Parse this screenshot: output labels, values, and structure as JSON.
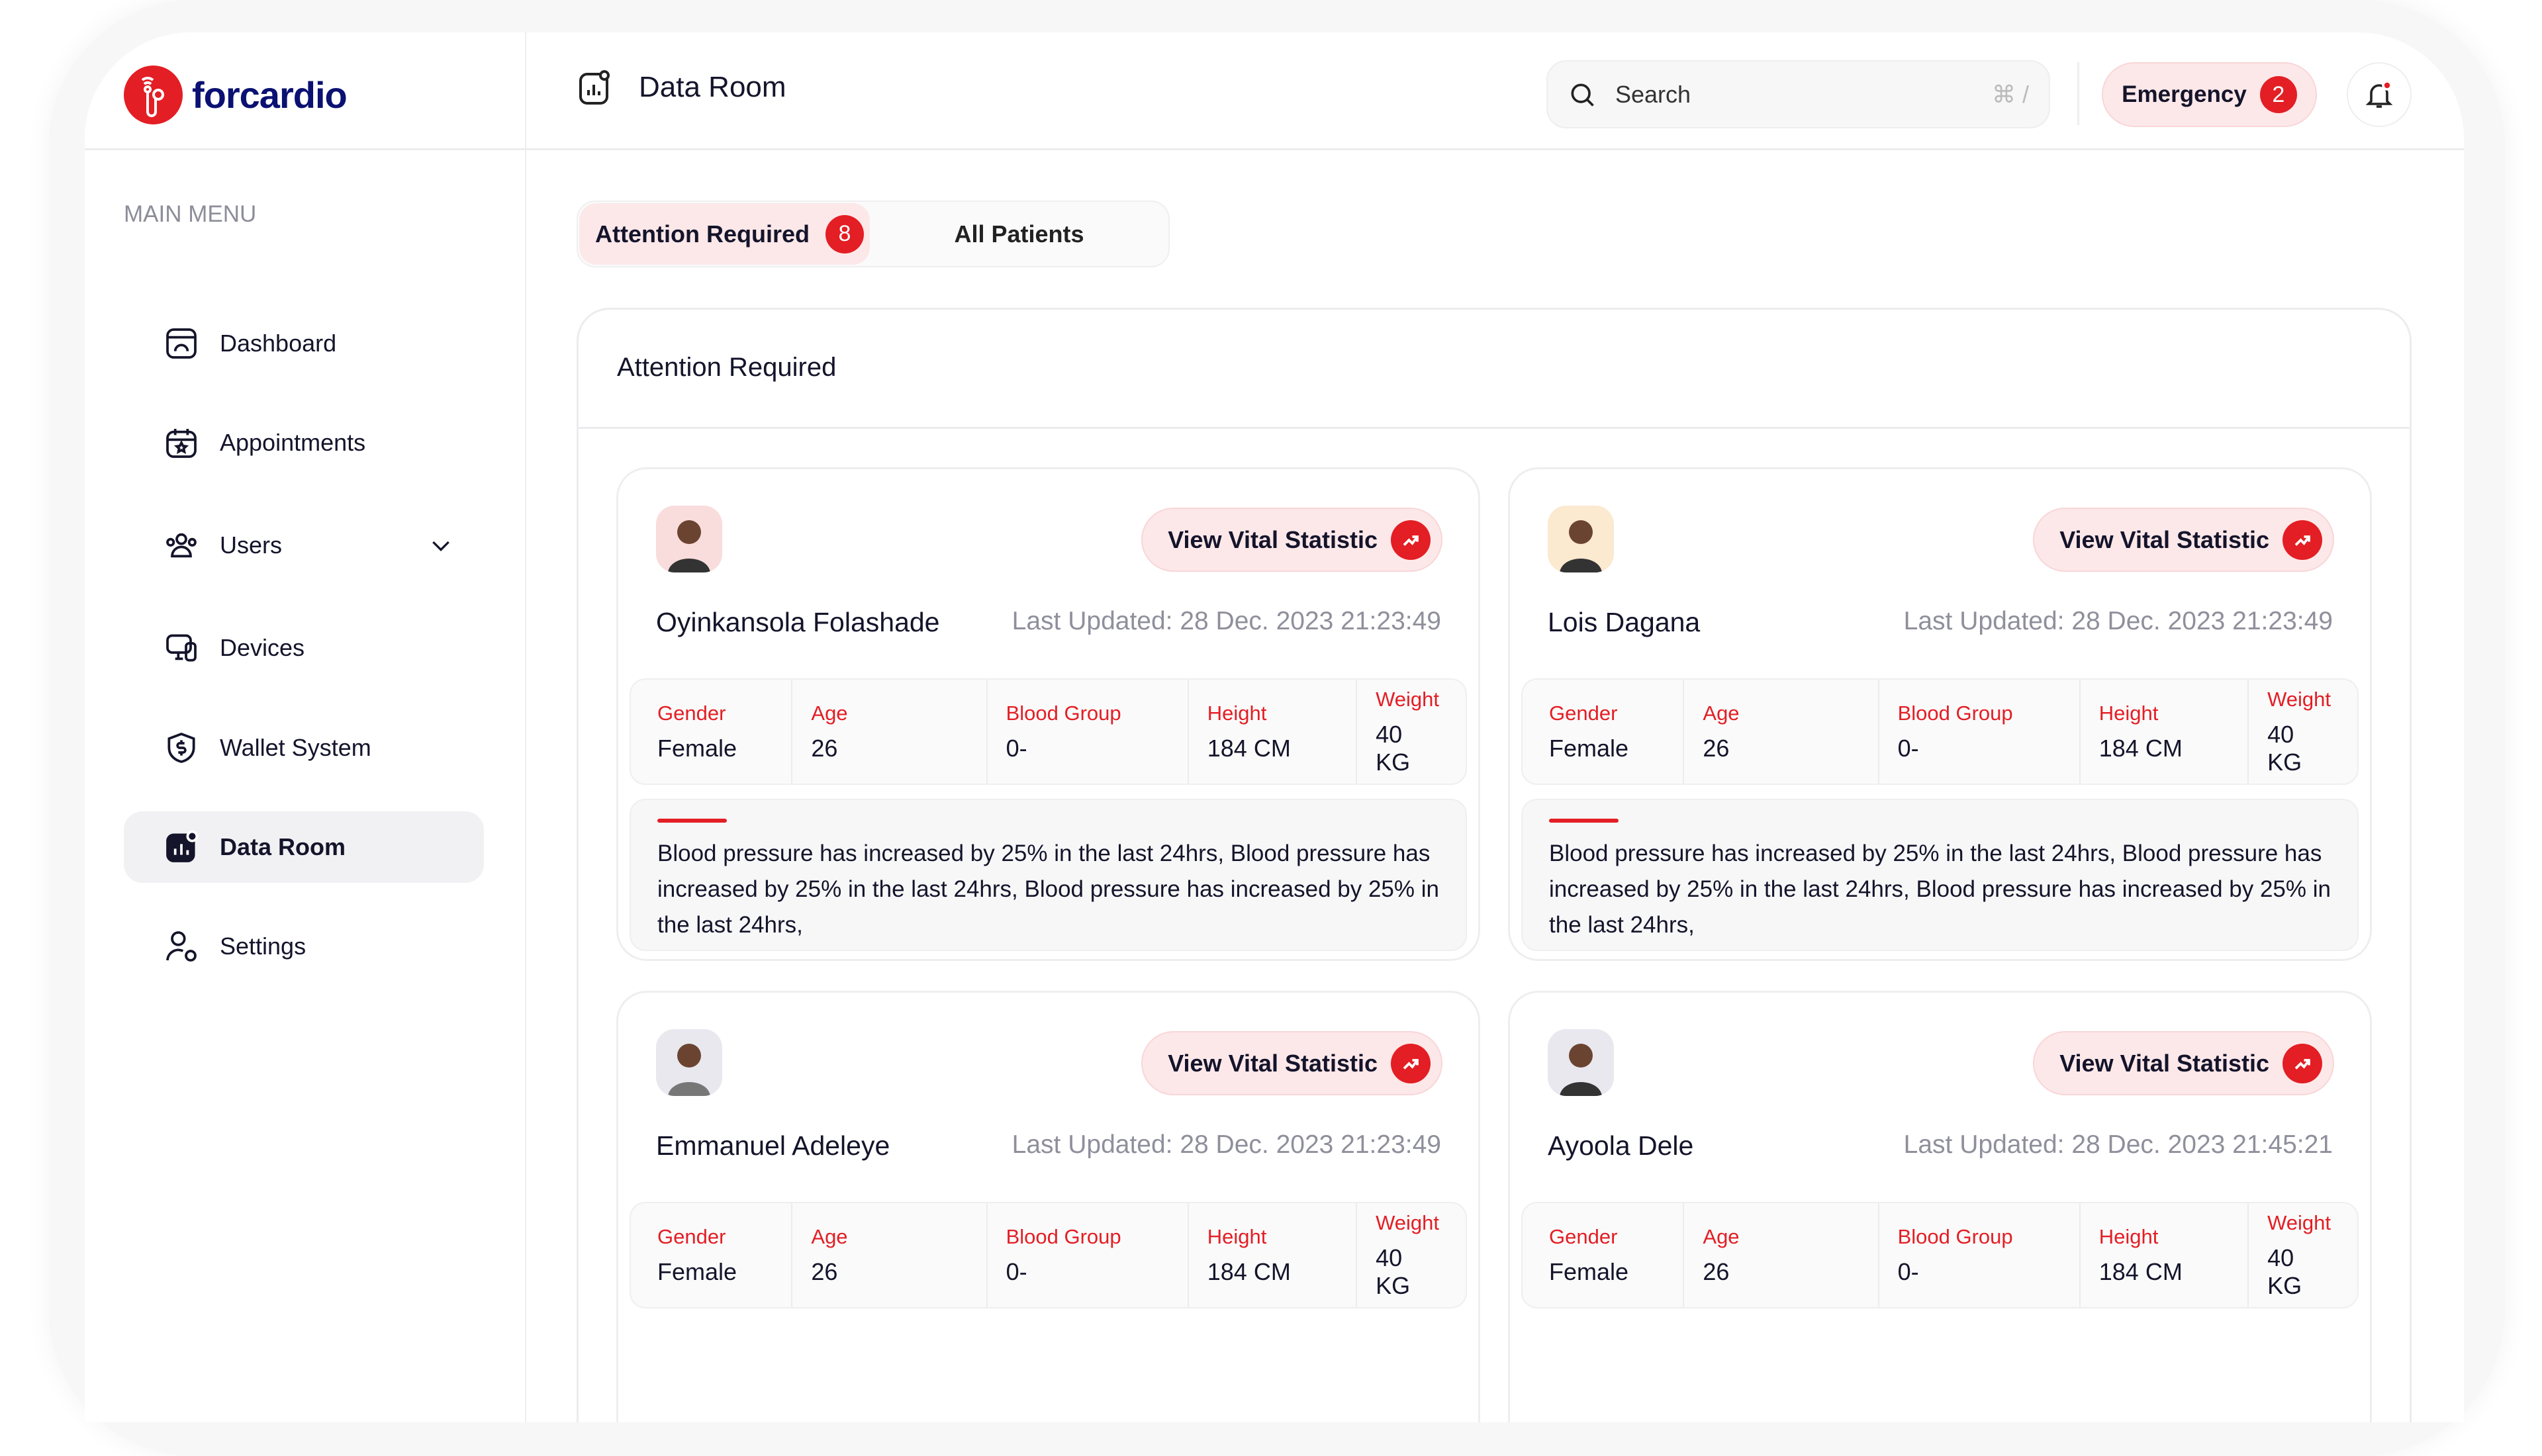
{
  "app": {
    "logo_text": "forcardio",
    "page_title": "Data Room"
  },
  "header": {
    "search_placeholder": "Search",
    "search_shortcut": "⌘ /",
    "emergency_label": "Emergency",
    "emergency_count": "2",
    "notification_dot": true
  },
  "sidebar": {
    "section_label": "MAIN MENU",
    "items": [
      {
        "label": "Dashboard",
        "icon": "dashboard-icon"
      },
      {
        "label": "Appointments",
        "icon": "calendar-star-icon"
      },
      {
        "label": "Users",
        "icon": "users-icon",
        "has_chevron": true
      },
      {
        "label": "Devices",
        "icon": "devices-icon"
      },
      {
        "label": "Wallet System",
        "icon": "shield-dollar-icon"
      },
      {
        "label": "Data Room",
        "icon": "chart-icon",
        "active": true
      },
      {
        "label": "Settings",
        "icon": "user-gear-icon"
      }
    ]
  },
  "tabs": [
    {
      "label": "Attention Required",
      "count": "8",
      "active": true
    },
    {
      "label": "All Patients"
    }
  ],
  "panel": {
    "title": "Attention Required"
  },
  "colors": {
    "accent": "#e31e24",
    "brand": "#0b1172",
    "accent_soft": "#fde8e9"
  },
  "stat_labels": [
    "Gender",
    "Age",
    "Blood Group",
    "Height",
    "Weight"
  ],
  "patients": [
    {
      "name": "Oyinkansola Folashade",
      "updated": "Last Updated: 28 Dec. 2023 21:23:49",
      "button": "View Vital Statistic",
      "stats": [
        "Female",
        "26",
        "0-",
        "184 CM",
        "40 KG"
      ],
      "alert": "Blood pressure has increased by 25% in the last 24hrs,  Blood pressure has increased by 25% in the last 24hrs, Blood pressure has increased by 25% in the last 24hrs,"
    },
    {
      "name": "Lois Dagana",
      "updated": "Last Updated: 28 Dec. 2023 21:23:49",
      "button": "View Vital Statistic",
      "stats": [
        "Female",
        "26",
        "0-",
        "184 CM",
        "40 KG"
      ],
      "alert": "Blood pressure has increased by 25% in the last 24hrs,  Blood pressure has increased by 25% in the last 24hrs, Blood pressure has increased by 25% in the last 24hrs,"
    },
    {
      "name": "Emmanuel Adeleye",
      "updated": "Last Updated: 28 Dec. 2023 21:23:49",
      "button": "View Vital Statistic",
      "stats": [
        "Female",
        "26",
        "0-",
        "184 CM",
        "40 KG"
      ],
      "alert": ""
    },
    {
      "name": "Ayoola Dele",
      "updated": "Last Updated: 28 Dec. 2023  21:45:21",
      "button": "View Vital Statistic",
      "stats": [
        "Female",
        "26",
        "0-",
        "184 CM",
        "40 KG"
      ],
      "alert": ""
    }
  ]
}
